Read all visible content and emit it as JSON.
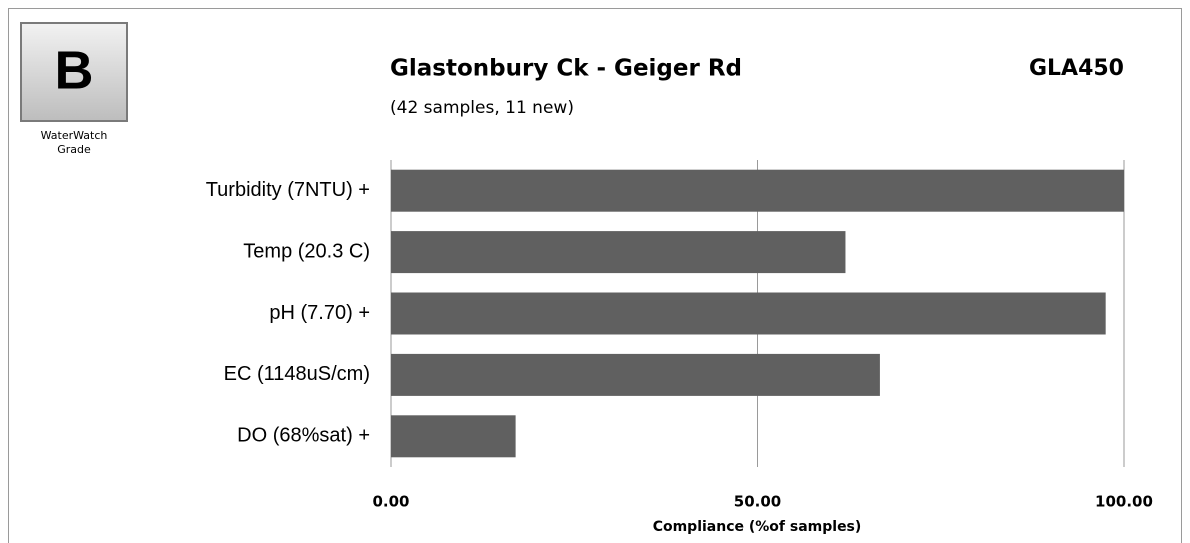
{
  "chart_data": {
    "type": "bar",
    "orientation": "horizontal",
    "title": "Glastonbury Ck - Geiger Rd",
    "subtitle": "(42 samples, 11 new)",
    "site_code": "GLA450",
    "grade": "B",
    "grade_label": [
      "WaterWatch",
      "Grade"
    ],
    "categories": [
      "Turbidity (7NTU) +",
      "Temp (20.3 C)",
      "pH (7.70) +",
      "EC (1148uS/cm)",
      "DO (68%sat) +"
    ],
    "values": [
      100,
      62,
      97.5,
      66.7,
      17
    ],
    "color": "#606060",
    "xlabel": "Compliance (%of samples)",
    "xlim": [
      0,
      100
    ],
    "xticks": [
      {
        "value": 0,
        "label": "0.00"
      },
      {
        "value": 50,
        "label": "50.00"
      },
      {
        "value": 100,
        "label": "100.00"
      }
    ],
    "grid": true
  }
}
